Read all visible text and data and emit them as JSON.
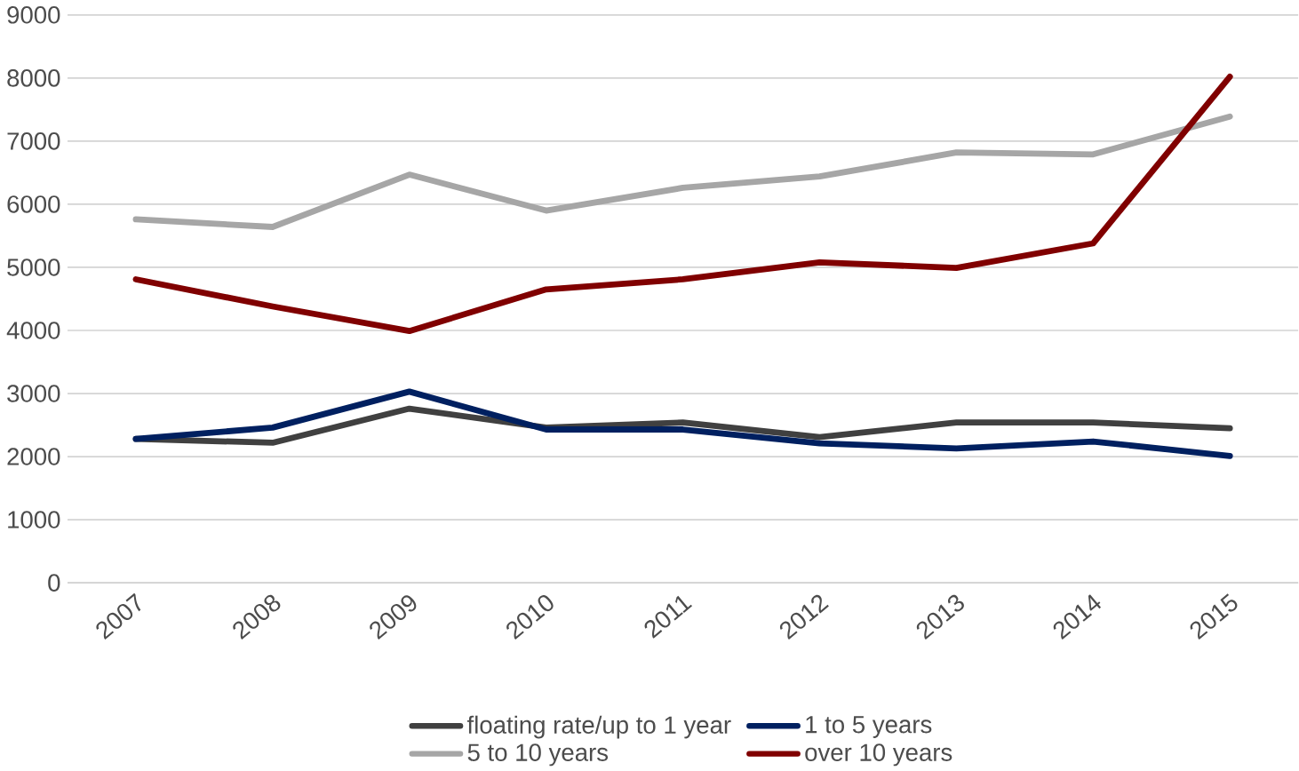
{
  "chart_data": {
    "type": "line",
    "categories": [
      "2007",
      "2008",
      "2009",
      "2010",
      "2011",
      "2012",
      "2013",
      "2014",
      "2015"
    ],
    "series": [
      {
        "name": "floating rate/up to 1 year",
        "color": "#404040",
        "values": [
          2280,
          2220,
          2760,
          2460,
          2540,
          2310,
          2540,
          2540,
          2450
        ]
      },
      {
        "name": "1 to 5 years",
        "color": "#002060",
        "values": [
          2280,
          2460,
          3030,
          2430,
          2430,
          2210,
          2130,
          2240,
          2010
        ]
      },
      {
        "name": "5 to 10 years",
        "color": "#a6a6a6",
        "values": [
          5760,
          5640,
          6470,
          5900,
          6260,
          6440,
          6820,
          6790,
          7390
        ]
      },
      {
        "name": "over 10 years",
        "color": "#800000",
        "values": [
          4810,
          4380,
          3990,
          4650,
          4810,
          5080,
          4990,
          5380,
          8020
        ]
      }
    ],
    "ylim": [
      0,
      9000
    ],
    "yticks": [
      0,
      1000,
      2000,
      3000,
      4000,
      5000,
      6000,
      7000,
      8000,
      9000
    ],
    "grid": "y",
    "legend": "bottom",
    "marker": "none",
    "line_style": "solid"
  }
}
